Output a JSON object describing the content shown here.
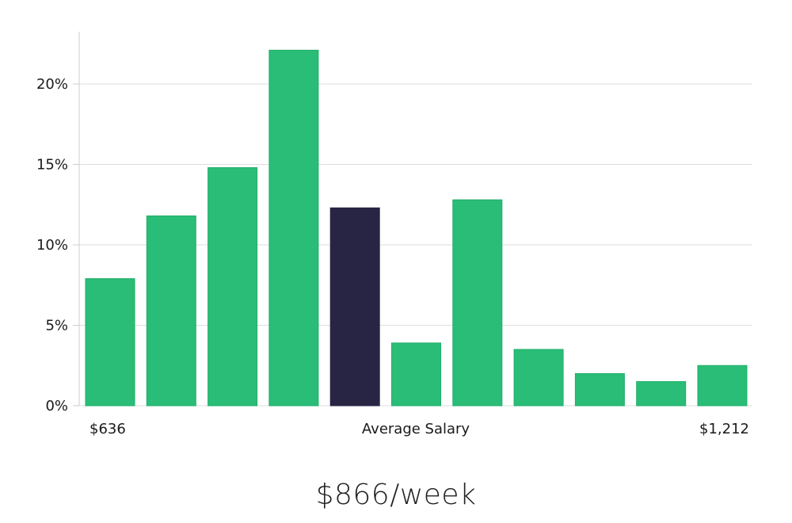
{
  "chart_data": {
    "type": "bar",
    "values": [
      7.9,
      11.8,
      14.8,
      22.1,
      12.3,
      3.9,
      12.8,
      3.5,
      2.0,
      1.5,
      2.5
    ],
    "highlight_index": 4,
    "ylim": [
      0,
      23
    ],
    "yticks": [
      0,
      5,
      10,
      15,
      20
    ],
    "ytick_labels": [
      "0%",
      "5%",
      "10%",
      "15%",
      "20%"
    ],
    "x_labels": {
      "left": "$636",
      "center": "Average Salary",
      "right": "$1,212"
    },
    "grid": true,
    "colors": {
      "bar": "#2abd77",
      "bar_stroke": "#1fae68",
      "highlight": "#272444",
      "grid": "#dddddd",
      "axis": "#cccccc"
    }
  },
  "salary": {
    "value": "$866/week"
  }
}
